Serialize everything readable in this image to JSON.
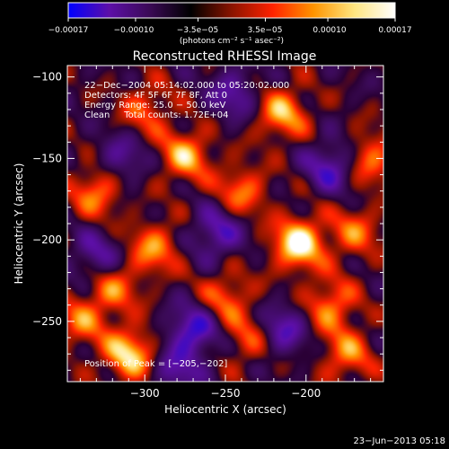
{
  "chart_data": {
    "type": "heatmap",
    "title": "Reconstructed RHESSI Image",
    "xlabel": "Heliocentric X (arcsec)",
    "ylabel": "Heliocentric Y (arcsec)",
    "xlim": [
      -348,
      -152
    ],
    "ylim": [
      -287,
      -93
    ],
    "x_ticks": [
      -300,
      -250,
      -200
    ],
    "x_tick_labels": [
      "−300",
      "−250",
      "−200"
    ],
    "y_ticks": [
      -100,
      -150,
      -200,
      -250
    ],
    "y_tick_labels": [
      "−100",
      "−150",
      "−200",
      "−250"
    ],
    "colorbar": {
      "range": [
        -0.00017,
        0.00017
      ],
      "ticks": [
        -0.00017,
        -0.0001,
        -3.5e-05,
        3.5e-05,
        0.0001,
        0.00017
      ],
      "tick_labels": [
        "−0.00017",
        "−0.00010",
        "−3.5e−05",
        "3.5e−05",
        "0.00010",
        "0.00017"
      ],
      "units_label": "(photons cm⁻² s⁻¹ asec⁻²)",
      "colors": [
        "#0000ff",
        "#5d0fa8",
        "#3a0a55",
        "#000000",
        "#8a1400",
        "#ff2200",
        "#ff9400",
        "#ffe680",
        "#ffffff"
      ]
    },
    "annotations": [
      "22−Dec−2004 05:14:02.000 to 05:20:02.000",
      "Detectors: 4F 5F 6F 7F 8F, Att 0",
      "Energy Range: 25.0 − 50.0 keV",
      "Clean     Total counts: 1.72E+04"
    ],
    "peak_label": "Position of Peak = [−205,−202]",
    "peak": [
      -205,
      -202
    ],
    "features": [
      {
        "x": -205,
        "y": -202,
        "v": 1.0
      },
      {
        "x": -310,
        "y": -270,
        "v": 0.85
      },
      {
        "x": -215,
        "y": -122,
        "v": 0.7
      },
      {
        "x": -275,
        "y": -148,
        "v": 0.7
      },
      {
        "x": -330,
        "y": -170,
        "v": 0.6
      },
      {
        "x": -240,
        "y": -170,
        "v": 0.55
      },
      {
        "x": -295,
        "y": -205,
        "v": 0.6
      },
      {
        "x": -185,
        "y": -240,
        "v": 0.6
      },
      {
        "x": -175,
        "y": -270,
        "v": 0.55
      },
      {
        "x": -250,
        "y": -235,
        "v": 0.5
      },
      {
        "x": -320,
        "y": -230,
        "v": 0.55
      },
      {
        "x": -160,
        "y": -150,
        "v": 0.55
      },
      {
        "x": -300,
        "y": -120,
        "v": 0.45
      },
      {
        "x": -340,
        "y": -250,
        "v": 0.5
      },
      {
        "x": -170,
        "y": -195,
        "v": 0.5
      },
      {
        "x": -235,
        "y": -260,
        "v": 0.45
      },
      {
        "x": -270,
        "y": -255,
        "v": -0.7
      },
      {
        "x": -215,
        "y": -255,
        "v": -0.6
      },
      {
        "x": -255,
        "y": -195,
        "v": -0.6
      },
      {
        "x": -185,
        "y": -155,
        "v": -0.6
      },
      {
        "x": -330,
        "y": -210,
        "v": -0.5
      },
      {
        "x": -245,
        "y": -110,
        "v": -0.5
      },
      {
        "x": -315,
        "y": -150,
        "v": -0.45
      },
      {
        "x": -280,
        "y": -280,
        "v": -0.5
      }
    ]
  },
  "footer_timestamp": "23−Jun−2013 05:18"
}
